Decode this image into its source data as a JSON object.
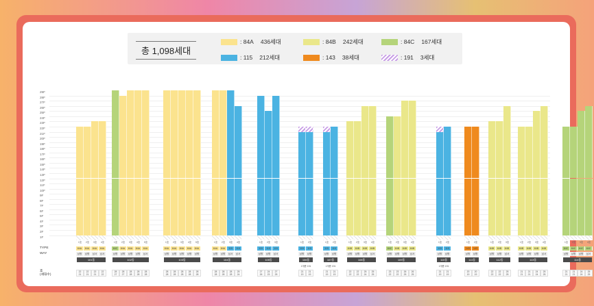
{
  "legend": {
    "title": "총 1,098세대",
    "items": [
      {
        "label": ": 84A",
        "count": "436세대",
        "color": "#fbe38e"
      },
      {
        "label": ": 84B",
        "count": "242세대",
        "color": "#eae78a"
      },
      {
        "label": ": 84C",
        "count": "167세대",
        "color": "#b5d47a"
      },
      {
        "label": ": 115",
        "count": "212세대",
        "color": "#4bb3e2"
      },
      {
        "label": ": 143",
        "count": "38세대",
        "color": "#ef8a1e"
      },
      {
        "label": ": 191",
        "count": "3세대",
        "color": "striped"
      }
    ]
  },
  "type_colors": {
    "A": "#fbe38e",
    "B": "#eae78a",
    "C": "#b5d47a",
    "D": "#4bb3e2",
    "E": "#ef8a1e"
  },
  "type_names": {
    "A": "84A",
    "B": "84B",
    "C": "84C",
    "D": "115",
    "E": "143",
    "S": "191"
  },
  "floors": [
    "2F",
    "3F",
    "4F",
    "5F",
    "6F",
    "7F",
    "8F",
    "9F",
    "10F",
    "11F",
    "12F",
    "13F",
    "14F",
    "15F",
    "16F",
    "17F",
    "18F",
    "19F",
    "20F",
    "21F",
    "22F",
    "23F",
    "24F",
    "25F",
    "26F",
    "27F",
    "28F",
    "29F"
  ],
  "row_labels": {
    "type": "TYPE",
    "way": "WAY",
    "bottom": "호\n(세대수)"
  },
  "buildings": [
    {
      "x": 138,
      "units": [
        1,
        2,
        3,
        4
      ],
      "types": "AAAA",
      "heights": [
        22,
        22,
        23,
        23
      ],
      "way": [
        "남향",
        "남향",
        "남서",
        "남서"
      ],
      "dong": "101동",
      "note": "",
      "ho_counts": [
        "22\n21",
        "22\n21",
        "22\n21",
        "22\n22"
      ]
    },
    {
      "x": 195,
      "units": [
        1,
        2,
        3,
        4,
        5
      ],
      "types": "CAAAA",
      "heights": [
        29,
        28,
        29,
        29,
        29
      ],
      "way": [
        "남향",
        "남향",
        "남향",
        "남향",
        "남서"
      ],
      "dong": "102동",
      "note": "",
      "ho_counts": [
        "28\n27",
        "28\n27",
        "28\n28",
        "28\n28",
        "28\n28"
      ]
    },
    {
      "x": 270,
      "units": [
        1,
        2,
        3,
        4,
        5
      ],
      "types": "AAAAA",
      "heights": [
        29,
        29,
        29,
        29,
        29
      ],
      "way": [
        "남향",
        "남향",
        "남향",
        "남향",
        "남향"
      ],
      "dong": "103동",
      "note": "",
      "ho_counts": [
        "28\n28",
        "28\n28",
        "28\n28",
        "28\n28",
        "28\n28"
      ]
    },
    {
      "x": 336,
      "units": [
        1,
        2,
        3,
        4
      ],
      "types": "AADD",
      "heights": [
        29,
        29,
        29,
        26
      ],
      "way": [
        "남향",
        "남향",
        "남서",
        "남서"
      ],
      "dong": "104동",
      "note": "",
      "ho_counts": [
        "28\n28",
        "28\n28",
        "28\n28",
        "25\n24"
      ]
    },
    {
      "x": 396,
      "units": [
        1,
        2,
        3
      ],
      "types": "DDD",
      "heights": [
        28,
        25,
        28
      ],
      "way": [
        "남향",
        "남향",
        "남서"
      ],
      "dong": "105동",
      "note": "",
      "ho_counts": [
        "27\n26",
        "24\n23",
        "27\n25"
      ]
    },
    {
      "x": 451,
      "units": [
        1,
        2
      ],
      "types": "DD",
      "heights": [
        22,
        22
      ],
      "way": [
        "남향",
        "남향"
      ],
      "dong": "106동",
      "note": "1개층 191",
      "special": [
        0,
        1
      ],
      "ho_counts": [
        "21\n19",
        "21\n19"
      ]
    },
    {
      "x": 487,
      "units": [
        1,
        2
      ],
      "types": "DD",
      "heights": [
        22,
        22
      ],
      "way": [
        "남향",
        "남향"
      ],
      "dong": "107동",
      "note": "1개층 191",
      "special": [
        0
      ],
      "ho_counts": [
        "21\n19",
        "21\n19"
      ]
    },
    {
      "x": 532,
      "units": [
        1,
        2,
        3,
        4
      ],
      "types": "BBBB",
      "heights": [
        23,
        23,
        26,
        26
      ],
      "way": [
        "남향",
        "남향",
        "남향",
        "남서"
      ],
      "dong": "108동",
      "note": "",
      "ho_counts": [
        "22\n22",
        "22\n22",
        "25\n24",
        "25\n25"
      ]
    },
    {
      "x": 590,
      "units": [
        1,
        2,
        3,
        4
      ],
      "types": "CBBB",
      "heights": [
        24,
        24,
        27,
        27
      ],
      "way": [
        "남향",
        "남향",
        "남향",
        "남서"
      ],
      "dong": "109동",
      "note": "",
      "ho_counts": [
        "23\n22",
        "23\n22",
        "26\n25",
        "26\n25"
      ]
    },
    {
      "x": 652,
      "units": [
        1,
        2
      ],
      "types": "DD",
      "heights": [
        22,
        22
      ],
      "way": [
        "남향",
        "남향"
      ],
      "dong": "110동",
      "note": "1개층 191",
      "special": [
        0
      ],
      "ho_counts": [
        "21\n19",
        "21\n19"
      ]
    },
    {
      "x": 693,
      "units": [
        1,
        2
      ],
      "types": "EE",
      "heights": [
        22,
        22
      ],
      "way": [
        "남향",
        "남향"
      ],
      "dong": "111동",
      "note": "",
      "ho_counts": [
        "20\n19",
        "20\n19"
      ]
    },
    {
      "x": 733,
      "units": [
        1,
        2,
        3
      ],
      "types": "BBB",
      "heights": [
        23,
        23,
        26
      ],
      "way": [
        "남향",
        "남향",
        "남서"
      ],
      "dong": "112동",
      "note": "",
      "ho_counts": [
        "22\n22",
        "22\n22",
        "25\n25"
      ]
    },
    {
      "x": 782,
      "units": [
        1,
        2,
        3,
        4
      ],
      "types": "BBBB",
      "heights": [
        22,
        22,
        25,
        26
      ],
      "way": [
        "남향",
        "남향",
        "남향",
        "남서"
      ],
      "dong": "113동",
      "note": "",
      "ho_counts": [
        "21\n21",
        "21\n21",
        "24\n24",
        "25\n25"
      ]
    },
    {
      "x": 847,
      "units": [
        1,
        2,
        3,
        4
      ],
      "types": "CCCC",
      "heights": [
        22,
        22,
        25,
        26
      ],
      "way": [
        "남향",
        "남향",
        "남향",
        "남서"
      ],
      "dong": "114동",
      "note": "",
      "ho_counts": [
        "21\n21",
        "21\n21",
        "24\n24",
        "25\n25"
      ]
    }
  ]
}
